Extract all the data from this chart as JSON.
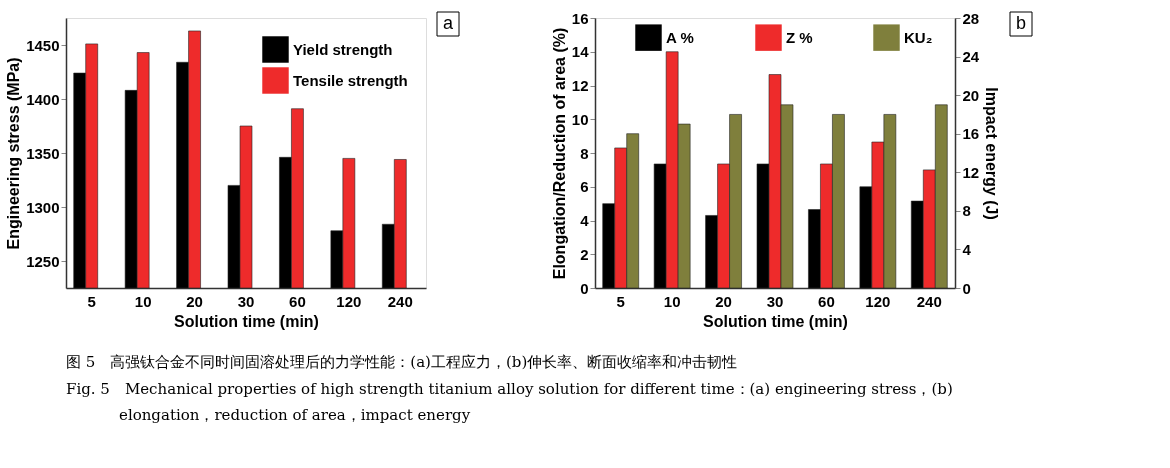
{
  "chart_data": [
    {
      "type": "bar",
      "xlabel": "Solution time (min)",
      "ylabel": "Engineering stress (MPa)",
      "categories": [
        "5",
        "10",
        "20",
        "30",
        "60",
        "120",
        "240"
      ],
      "series": [
        {
          "name": "Yield strength",
          "color": "#000000",
          "values": [
            1424,
            1408,
            1434,
            1320,
            1346,
            1278,
            1284
          ]
        },
        {
          "name": "Tensile strength",
          "color": "#ee2b2b",
          "values": [
            1451,
            1443,
            1463,
            1375,
            1391,
            1345,
            1344
          ]
        }
      ],
      "ylim": [
        1225,
        1475
      ],
      "yticks": [
        1250,
        1300,
        1350,
        1400,
        1450
      ],
      "grid": false,
      "legend": "top right",
      "annotations": [
        "a",
        "图 5　高强钛合金不同时间固溶处理后的力学性能：(a)工程应力，(b)伸长率、断面收缩率和冲击韧性",
        "Fig. 5　Mechanical properties of high strength titanium alloy solution for different time：(a) engineering stress，(b) elongation，reduction of area，impact energy"
      ]
    },
    {
      "type": "bar",
      "xlabel": "Solution time (min)",
      "ylabel": "Elongation/Reduction of area (%)",
      "y2label": "Impact energy (J)",
      "categories": [
        "5",
        "10",
        "20",
        "30",
        "60",
        "120",
        "240"
      ],
      "series": [
        {
          "name": "A %",
          "color": "#000000",
          "values": [
            5.0,
            7.35,
            4.3,
            7.35,
            4.65,
            6.0,
            5.15
          ]
        },
        {
          "name": "Z %",
          "color": "#ee2b2b",
          "values": [
            8.3,
            14.0,
            7.35,
            12.65,
            7.35,
            8.65,
            7.0
          ]
        },
        {
          "name": "KU₂",
          "color": "#7f7f3c",
          "axis": "y2",
          "values": [
            16,
            17,
            18,
            19,
            18,
            18,
            19
          ]
        }
      ],
      "ylim": [
        0,
        16
      ],
      "yticks": [
        0,
        2,
        4,
        6,
        8,
        10,
        12,
        14,
        16
      ],
      "y2lim": [
        0,
        28
      ],
      "y2ticks": [
        0,
        4,
        8,
        12,
        16,
        20,
        24,
        28
      ],
      "grid": false,
      "legend": "top",
      "annotations": [
        "b"
      ]
    }
  ]
}
